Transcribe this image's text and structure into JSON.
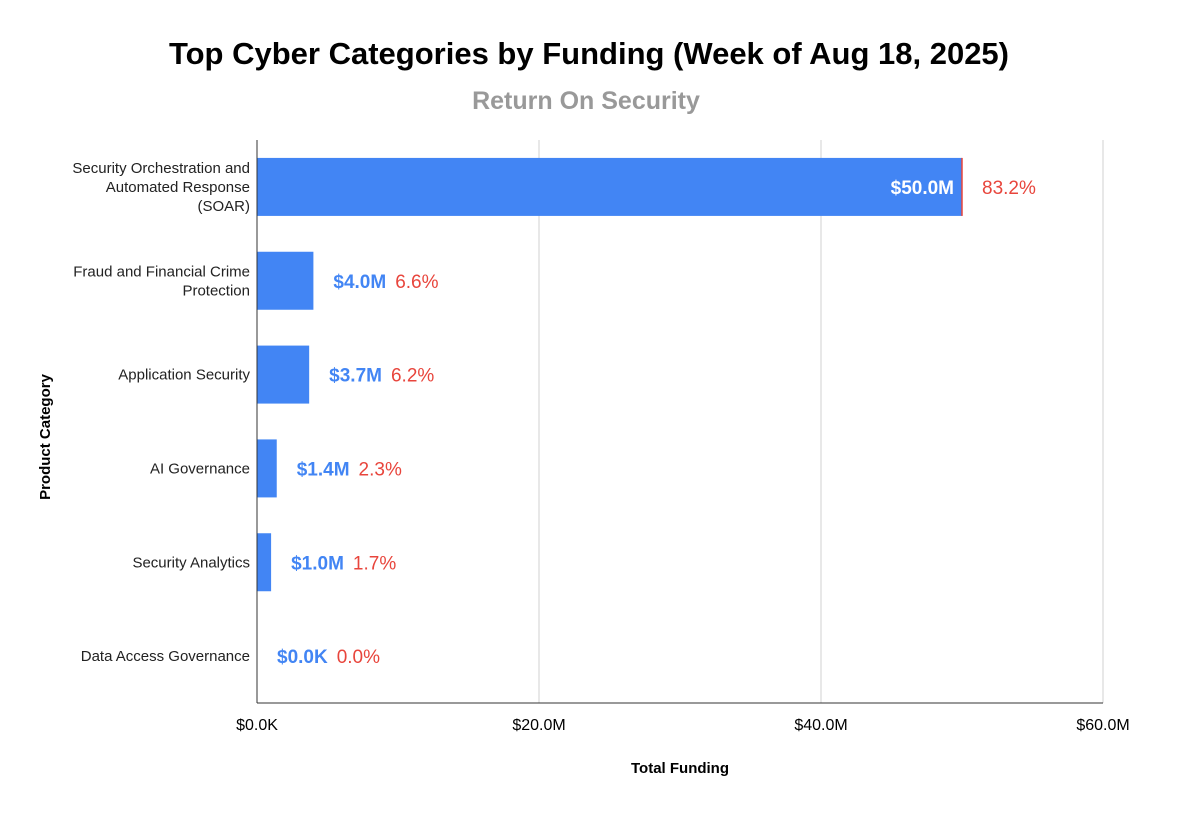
{
  "chart_data": {
    "type": "bar",
    "orientation": "horizontal",
    "title": "Top Cyber Categories by Funding (Week of Aug 18, 2025)",
    "subtitle": "Return On Security",
    "xlabel": "Total Funding",
    "ylabel": "Product Category",
    "xlim": [
      0,
      60
    ],
    "x_unit": "$M",
    "x_ticks": [
      {
        "value": 0,
        "label": "$0.0K"
      },
      {
        "value": 20,
        "label": "$20.0M"
      },
      {
        "value": 40,
        "label": "$40.0M"
      },
      {
        "value": 60,
        "label": "$60.0M"
      }
    ],
    "grid": true,
    "legend": "none",
    "categories": [
      [
        "Security Orchestration and",
        "Automated Response",
        "(SOAR)"
      ],
      [
        "Fraud and Financial Crime",
        "Protection"
      ],
      [
        "Application Security"
      ],
      [
        "AI Governance"
      ],
      [
        "Security Analytics"
      ],
      [
        "Data Access Governance"
      ]
    ],
    "values": [
      50.0,
      4.0,
      3.7,
      1.4,
      1.0,
      0.0
    ],
    "value_labels": [
      "$50.0M",
      "$4.0M",
      "$3.7M",
      "$1.4M",
      "$1.0M",
      "$0.0K"
    ],
    "percent_labels": [
      "83.2%",
      "6.6%",
      "6.2%",
      "2.3%",
      "1.7%",
      "0.0%"
    ],
    "colors": {
      "bar": "#4285f4",
      "value_label": "#4285f4",
      "value_label_inside": "#ffffff",
      "percent_label": "#e8453c",
      "grid": "#d0d0d0",
      "axis": "#333333"
    }
  }
}
